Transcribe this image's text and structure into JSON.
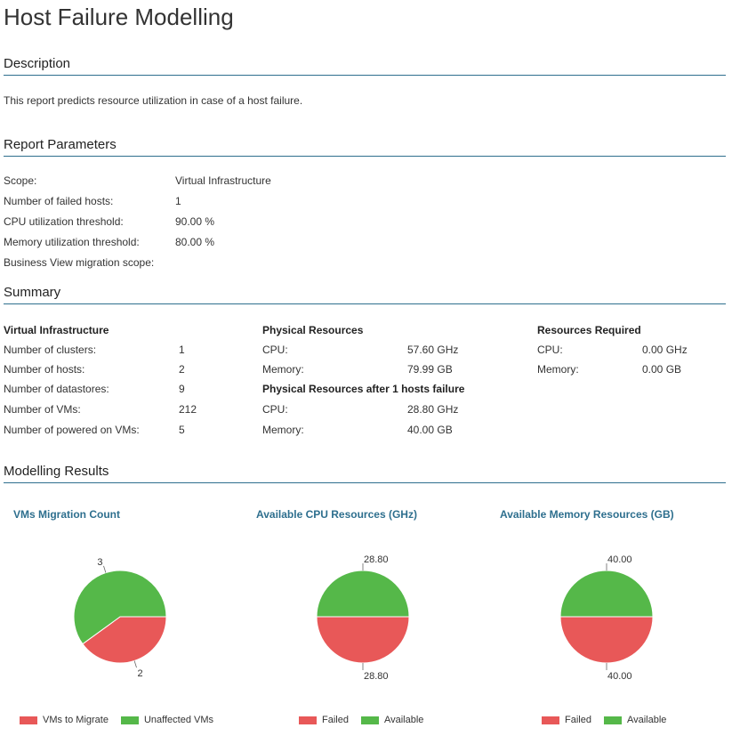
{
  "page": {
    "title": "Host Failure Modelling"
  },
  "description": {
    "heading": "Description",
    "text": "This report predicts resource utilization in case of a host failure."
  },
  "parameters": {
    "heading": "Report Parameters",
    "rows": [
      {
        "label": "Scope:",
        "value": "Virtual Infrastructure"
      },
      {
        "label": "Number of failed hosts:",
        "value": "1"
      },
      {
        "label": "CPU utilization threshold:",
        "value": "90.00 %"
      },
      {
        "label": "Memory utilization threshold:",
        "value": "80.00 %"
      },
      {
        "label": "Business View migration scope:",
        "value": ""
      }
    ]
  },
  "summary": {
    "heading": "Summary",
    "virtual": {
      "heading": "Virtual Infrastructure",
      "rows": [
        {
          "label": "Number of clusters:",
          "value": "1"
        },
        {
          "label": "Number of hosts:",
          "value": "2"
        },
        {
          "label": "Number of datastores:",
          "value": "9"
        },
        {
          "label": "Number of VMs:",
          "value": "212"
        },
        {
          "label": "Number of powered on VMs:",
          "value": "5"
        }
      ]
    },
    "physical": {
      "heading": "Physical Resources",
      "rows": [
        {
          "label": "CPU:",
          "value": "57.60 GHz"
        },
        {
          "label": "Memory:",
          "value": "79.99 GB"
        }
      ]
    },
    "after_failure": {
      "heading": "Physical Resources after  1 hosts failure",
      "rows": [
        {
          "label": "CPU:",
          "value": "28.80 GHz"
        },
        {
          "label": "Memory:",
          "value": "40.00 GB"
        }
      ]
    },
    "required": {
      "heading": "Resources Required",
      "rows": [
        {
          "label": "CPU:",
          "value": "0.00 GHz"
        },
        {
          "label": "Memory:",
          "value": "0.00 GB"
        }
      ]
    }
  },
  "modelling": {
    "heading": "Modelling Results"
  },
  "colors": {
    "available": "#55b849",
    "failed": "#e85858",
    "accent": "#2e6f8e"
  },
  "chart_data": [
    {
      "type": "pie",
      "title": "VMs Migration Count",
      "labels": [
        "VMs to Migrate",
        "Unaffected VMs"
      ],
      "values": [
        2,
        3
      ],
      "value_labels": [
        "2",
        "3"
      ],
      "colors": [
        "#e85858",
        "#55b849"
      ],
      "legend": "bottom"
    },
    {
      "type": "pie",
      "title": "Available CPU Resources (GHz)",
      "labels": [
        "Failed",
        "Available"
      ],
      "values": [
        28.8,
        28.8
      ],
      "value_labels": [
        "28.80",
        "28.80"
      ],
      "colors": [
        "#e85858",
        "#55b849"
      ],
      "legend": "bottom"
    },
    {
      "type": "pie",
      "title": "Available Memory Resources (GB)",
      "labels": [
        "Failed",
        "Available"
      ],
      "values": [
        40.0,
        40.0
      ],
      "value_labels": [
        "40.00",
        "40.00"
      ],
      "colors": [
        "#e85858",
        "#55b849"
      ],
      "legend": "bottom"
    }
  ]
}
